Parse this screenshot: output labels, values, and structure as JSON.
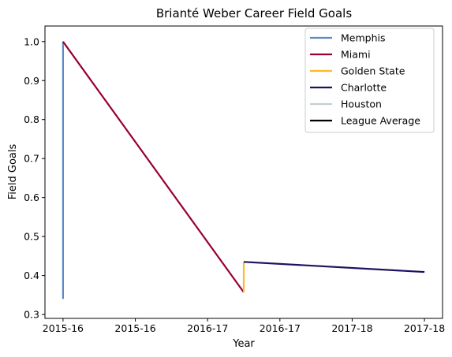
{
  "chart_data": {
    "type": "line",
    "title": "Brianté Weber Career Field Goals",
    "xlabel": "Year",
    "ylabel": "Field Goals",
    "x_ticks": [
      "2015-16",
      "2015-16",
      "2016-17",
      "2016-17",
      "2017-18",
      "2017-18"
    ],
    "y_ticks": [
      "0.3",
      "0.4",
      "0.5",
      "0.6",
      "0.7",
      "0.8",
      "0.9",
      "1.0"
    ],
    "ylim": [
      0.29,
      1.04
    ],
    "legend_position": "top-right",
    "grid": false,
    "series": [
      {
        "name": "Memphis",
        "color": "#5B8BC4",
        "points": [
          {
            "x": 0,
            "y": 0.34
          },
          {
            "x": 0,
            "y": 1.0
          }
        ]
      },
      {
        "name": "Miami",
        "color": "#98002E",
        "points": [
          {
            "x": 0,
            "y": 1.0
          },
          {
            "x": 2.5,
            "y": 0.357
          }
        ]
      },
      {
        "name": "Golden State",
        "color": "#FDB927",
        "points": [
          {
            "x": 2.5,
            "y": 0.357
          },
          {
            "x": 2.5,
            "y": 0.435
          }
        ]
      },
      {
        "name": "Charlotte",
        "color": "#1D1160",
        "points": [
          {
            "x": 2.5,
            "y": 0.435
          },
          {
            "x": 5,
            "y": 0.409
          }
        ]
      },
      {
        "name": "Houston",
        "color": "#C4CED4",
        "points": []
      },
      {
        "name": "League Average",
        "color": "#000000",
        "points": []
      }
    ]
  }
}
